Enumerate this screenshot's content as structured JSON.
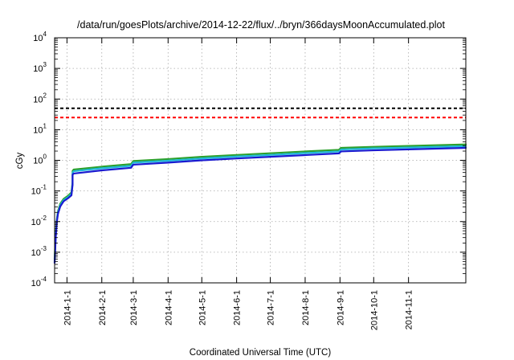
{
  "chart_data": {
    "type": "line",
    "title": "/data/run/goesPlots/archive/2014-12-22/flux/../bryn/366daysMoonAccumulated.plot",
    "xlabel": "Coordinated Universal Time (UTC)",
    "ylabel": "cGy",
    "y_scale": "log",
    "ylim": [
      0.0001,
      10000
    ],
    "xlim": [
      "2013-12-21",
      "2014-12-22"
    ],
    "y_ticks": [
      {
        "base": "10",
        "exp": "-4",
        "value": 0.0001
      },
      {
        "base": "10",
        "exp": "-3",
        "value": 0.001
      },
      {
        "base": "10",
        "exp": "-2",
        "value": 0.01
      },
      {
        "base": "10",
        "exp": "-1",
        "value": 0.1
      },
      {
        "base": "10",
        "exp": "0",
        "value": 1
      },
      {
        "base": "10",
        "exp": "1",
        "value": 10
      },
      {
        "base": "10",
        "exp": "2",
        "value": 100
      },
      {
        "base": "10",
        "exp": "3",
        "value": 1000
      },
      {
        "base": "10",
        "exp": "4",
        "value": 10000
      }
    ],
    "x_ticks": [
      {
        "label": "2014-1-1",
        "date": "2014-01-01"
      },
      {
        "label": "2014-2-1",
        "date": "2014-02-01"
      },
      {
        "label": "2014-3-1",
        "date": "2014-03-01"
      },
      {
        "label": "2014-4-1",
        "date": "2014-04-01"
      },
      {
        "label": "2014-5-1",
        "date": "2014-05-01"
      },
      {
        "label": "2014-6-1",
        "date": "2014-06-01"
      },
      {
        "label": "2014-7-1",
        "date": "2014-07-01"
      },
      {
        "label": "2014-8-1",
        "date": "2014-08-01"
      },
      {
        "label": "2014-9-1",
        "date": "2014-09-01"
      },
      {
        "label": "2014-10-1",
        "date": "2014-10-01"
      },
      {
        "label": "2014-11-1",
        "date": "2014-11-01"
      }
    ],
    "grid": true,
    "reference_lines": [
      {
        "value": 50,
        "color": "#000000",
        "style": "dashed"
      },
      {
        "value": 25,
        "color": "#ff0000",
        "style": "dashed"
      }
    ],
    "series": [
      {
        "color": "#2ca02c",
        "points": [
          [
            "2013-12-21",
            0.0006
          ],
          [
            "2013-12-22",
            0.004
          ],
          [
            "2013-12-23",
            0.012
          ],
          [
            "2013-12-24",
            0.022
          ],
          [
            "2013-12-26",
            0.038
          ],
          [
            "2013-12-29",
            0.055
          ],
          [
            "2014-01-02",
            0.07
          ],
          [
            "2014-01-05",
            0.09
          ],
          [
            "2014-01-06",
            0.2
          ],
          [
            "2014-01-06",
            0.45
          ],
          [
            "2014-01-07",
            0.5
          ],
          [
            "2014-02-01",
            0.62
          ],
          [
            "2014-02-27",
            0.75
          ],
          [
            "2014-03-01",
            0.95
          ],
          [
            "2014-04-01",
            1.1
          ],
          [
            "2014-05-01",
            1.3
          ],
          [
            "2014-06-01",
            1.5
          ],
          [
            "2014-07-01",
            1.7
          ],
          [
            "2014-08-01",
            1.95
          ],
          [
            "2014-08-31",
            2.2
          ],
          [
            "2014-09-02",
            2.55
          ],
          [
            "2014-10-01",
            2.75
          ],
          [
            "2014-11-01",
            2.95
          ],
          [
            "2014-12-22",
            3.3
          ]
        ]
      },
      {
        "color": "#20b8d8",
        "points": [
          [
            "2013-12-21",
            0.0005
          ],
          [
            "2013-12-22",
            0.0035
          ],
          [
            "2013-12-23",
            0.011
          ],
          [
            "2013-12-24",
            0.02
          ],
          [
            "2013-12-26",
            0.034
          ],
          [
            "2013-12-29",
            0.05
          ],
          [
            "2014-01-02",
            0.063
          ],
          [
            "2014-01-05",
            0.08
          ],
          [
            "2014-01-06",
            0.18
          ],
          [
            "2014-01-06",
            0.4
          ],
          [
            "2014-01-07",
            0.44
          ],
          [
            "2014-02-01",
            0.55
          ],
          [
            "2014-02-27",
            0.66
          ],
          [
            "2014-03-01",
            0.84
          ],
          [
            "2014-04-01",
            0.97
          ],
          [
            "2014-05-01",
            1.15
          ],
          [
            "2014-06-01",
            1.33
          ],
          [
            "2014-07-01",
            1.5
          ],
          [
            "2014-08-01",
            1.72
          ],
          [
            "2014-08-31",
            1.95
          ],
          [
            "2014-09-02",
            2.25
          ],
          [
            "2014-10-01",
            2.45
          ],
          [
            "2014-11-01",
            2.62
          ],
          [
            "2014-12-22",
            2.9
          ]
        ]
      },
      {
        "color": "#1a1ad0",
        "points": [
          [
            "2013-12-21",
            0.00045
          ],
          [
            "2013-12-22",
            0.003
          ],
          [
            "2013-12-23",
            0.01
          ],
          [
            "2013-12-24",
            0.018
          ],
          [
            "2013-12-26",
            0.031
          ],
          [
            "2013-12-29",
            0.046
          ],
          [
            "2014-01-02",
            0.058
          ],
          [
            "2014-01-05",
            0.072
          ],
          [
            "2014-01-06",
            0.16
          ],
          [
            "2014-01-06",
            0.34
          ],
          [
            "2014-01-07",
            0.37
          ],
          [
            "2014-02-01",
            0.47
          ],
          [
            "2014-02-27",
            0.57
          ],
          [
            "2014-03-01",
            0.72
          ],
          [
            "2014-04-01",
            0.84
          ],
          [
            "2014-05-01",
            1.0
          ],
          [
            "2014-06-01",
            1.15
          ],
          [
            "2014-07-01",
            1.3
          ],
          [
            "2014-08-01",
            1.48
          ],
          [
            "2014-08-31",
            1.68
          ],
          [
            "2014-09-02",
            1.95
          ],
          [
            "2014-10-01",
            2.12
          ],
          [
            "2014-11-01",
            2.28
          ],
          [
            "2014-12-22",
            2.55
          ]
        ]
      }
    ]
  }
}
